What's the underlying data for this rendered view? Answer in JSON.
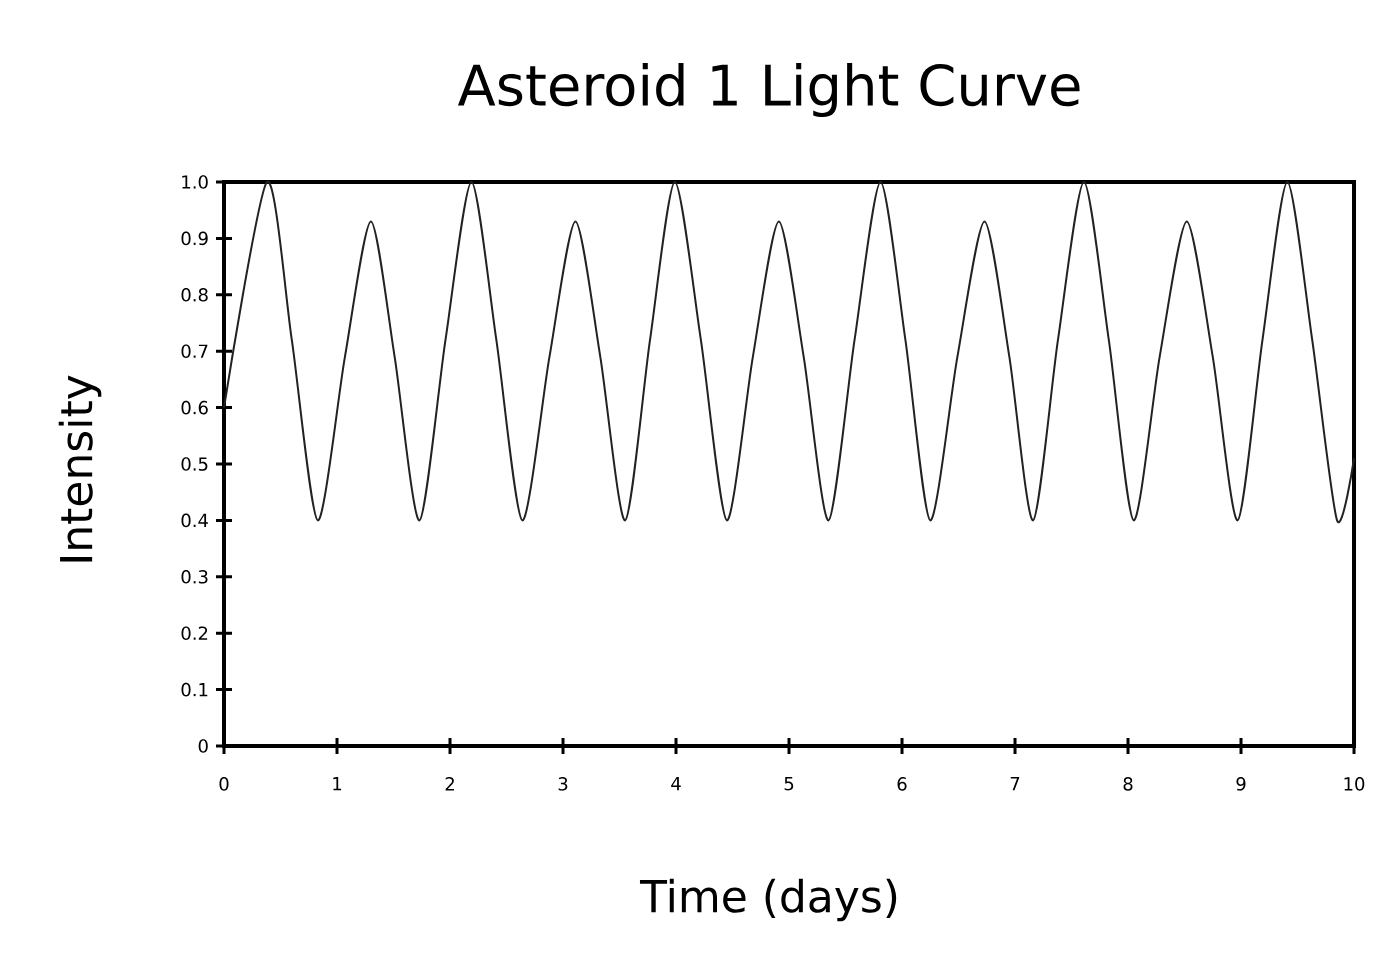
{
  "chart_data": {
    "type": "line",
    "title": "Asteroid 1 Light Curve",
    "xlabel": "Time (days)",
    "ylabel": "Intensity",
    "x": [
      0,
      0.38,
      0.6,
      0.83,
      1.07,
      1.3,
      1.51,
      1.73,
      1.96,
      2.19,
      2.41,
      2.64,
      2.88,
      3.11,
      3.33,
      3.55,
      3.77,
      3.99,
      4.22,
      4.45,
      4.68,
      4.91,
      5.13,
      5.35,
      5.58,
      5.81,
      6.03,
      6.25,
      6.49,
      6.73,
      6.95,
      7.16,
      7.38,
      7.61,
      7.83,
      8.05,
      8.28,
      8.52,
      8.75,
      8.97,
      9.19,
      9.41,
      9.63,
      9.85,
      10
    ],
    "series": [
      {
        "color": "#222222",
        "values": [
          0.6,
          1.0,
          0.72,
          0.4,
          0.69,
          0.93,
          0.69,
          0.4,
          0.72,
          1.0,
          0.72,
          0.4,
          0.69,
          0.93,
          0.69,
          0.4,
          0.72,
          1.0,
          0.72,
          0.4,
          0.69,
          0.93,
          0.69,
          0.4,
          0.72,
          1.0,
          0.72,
          0.4,
          0.69,
          0.93,
          0.69,
          0.4,
          0.72,
          1.0,
          0.72,
          0.4,
          0.69,
          0.93,
          0.69,
          0.4,
          0.72,
          1.0,
          0.72,
          0.4,
          0.51
        ]
      }
    ],
    "xlim": [
      0,
      10
    ],
    "ylim": [
      0,
      1
    ],
    "xticks": [
      0,
      1,
      2,
      3,
      4,
      5,
      6,
      7,
      8,
      9,
      10
    ],
    "yticks": [
      0,
      0.1,
      0.2,
      0.3,
      0.4,
      0.5,
      0.6,
      0.7,
      0.8,
      0.9,
      {
        "value": 1,
        "label": "1.0"
      }
    ],
    "grid": false,
    "marker": "none",
    "line_style": "solid"
  }
}
